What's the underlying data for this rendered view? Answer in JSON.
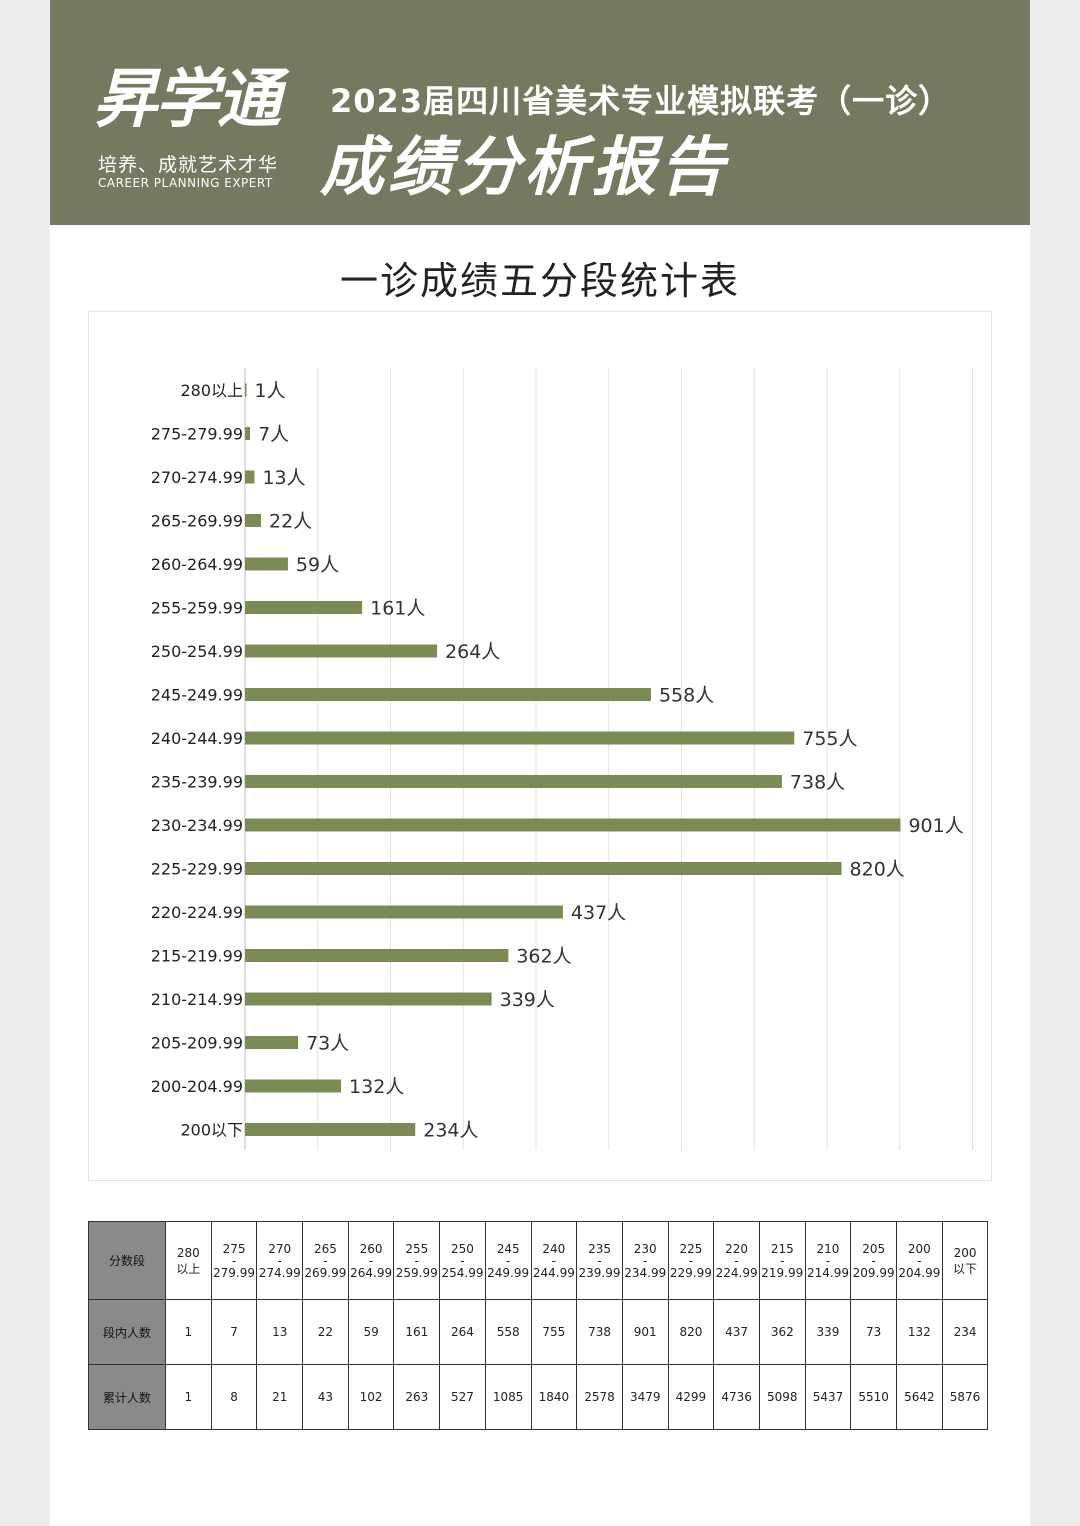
{
  "brand": {
    "logo_text": "昇学通",
    "slogan": "培养、成就艺术才华",
    "slogan_en": "CAREER PLANNING EXPERT"
  },
  "header": {
    "line1": "2023届四川省美术专业模拟联考（一诊）",
    "line2": "成绩分析报告"
  },
  "colors": {
    "header_bg": "#737a5f",
    "bar": "#7b8b56",
    "table_head": "#8a8a8a"
  },
  "chart_data": {
    "type": "bar",
    "orientation": "horizontal",
    "title": "一诊成绩五分段统计表",
    "value_suffix": "人",
    "xlim": [
      0,
      1000
    ],
    "grid": true,
    "categories": [
      "280以上",
      "275-279.99",
      "270-274.99",
      "265-269.99",
      "260-264.99",
      "255-259.99",
      "250-254.99",
      "245-249.99",
      "240-244.99",
      "235-239.99",
      "230-234.99",
      "225-229.99",
      "220-224.99",
      "215-219.99",
      "210-214.99",
      "205-209.99",
      "200-204.99",
      "200以下"
    ],
    "values": [
      1,
      7,
      13,
      22,
      59,
      161,
      264,
      558,
      755,
      738,
      901,
      820,
      437,
      362,
      339,
      73,
      132,
      234
    ]
  },
  "table": {
    "row_labels": {
      "segment": "分数段",
      "count": "段内人数",
      "cumulative": "累计人数"
    },
    "segments": [
      {
        "top": "280",
        "bottom": "以上"
      },
      {
        "top": "275",
        "dash": "-",
        "bottom": "279.99"
      },
      {
        "top": "270",
        "dash": "-",
        "bottom": "274.99"
      },
      {
        "top": "265",
        "dash": "-",
        "bottom": "269.99"
      },
      {
        "top": "260",
        "dash": "-",
        "bottom": "264.99"
      },
      {
        "top": "255",
        "dash": "-",
        "bottom": "259.99"
      },
      {
        "top": "250",
        "dash": "-",
        "bottom": "254.99"
      },
      {
        "top": "245",
        "dash": "-",
        "bottom": "249.99"
      },
      {
        "top": "240",
        "dash": "-",
        "bottom": "244.99"
      },
      {
        "top": "235",
        "dash": "-",
        "bottom": "239.99"
      },
      {
        "top": "230",
        "dash": "-",
        "bottom": "234.99"
      },
      {
        "top": "225",
        "dash": "-",
        "bottom": "229.99"
      },
      {
        "top": "220",
        "dash": "-",
        "bottom": "224.99"
      },
      {
        "top": "215",
        "dash": "-",
        "bottom": "219.99"
      },
      {
        "top": "210",
        "dash": "-",
        "bottom": "214.99"
      },
      {
        "top": "205",
        "dash": "-",
        "bottom": "209.99"
      },
      {
        "top": "200",
        "dash": "-",
        "bottom": "204.99"
      },
      {
        "top": "200",
        "bottom": "以下"
      }
    ],
    "counts": [
      "1",
      "7",
      "13",
      "22",
      "59",
      "161",
      "264",
      "558",
      "755",
      "738",
      "901",
      "820",
      "437",
      "362",
      "339",
      "73",
      "132",
      "234"
    ],
    "cumulative": [
      "1",
      "8",
      "21",
      "43",
      "102",
      "263",
      "527",
      "1085",
      "1840",
      "2578",
      "3479",
      "4299",
      "4736",
      "5098",
      "5437",
      "5510",
      "5642",
      "5876"
    ]
  }
}
